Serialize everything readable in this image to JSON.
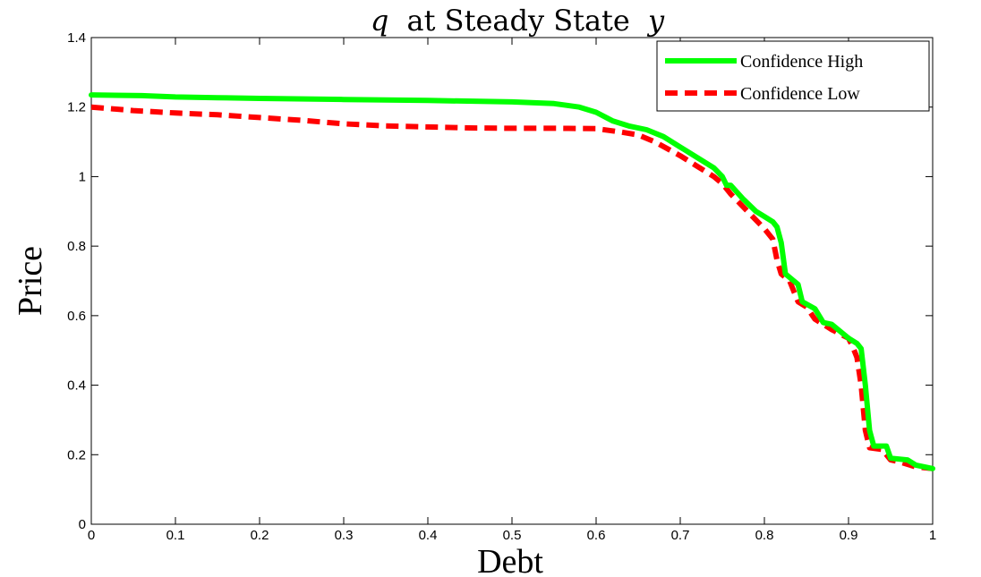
{
  "chart_data": {
    "type": "line",
    "title": {
      "q": "q",
      "middle": "at Steady State",
      "y": "y"
    },
    "xlabel": "Debt",
    "ylabel": "Price",
    "xlim": [
      0,
      1
    ],
    "ylim": [
      0,
      1.4
    ],
    "xticks": [
      "0",
      "0.1",
      "0.2",
      "0.3",
      "0.4",
      "0.5",
      "0.6",
      "0.7",
      "0.8",
      "0.9",
      "1"
    ],
    "yticks": [
      "0",
      "0.2",
      "0.4",
      "0.6",
      "0.8",
      "1",
      "1.2",
      "1.4"
    ],
    "grid": false,
    "legend_position": "top-right",
    "series": [
      {
        "name": "Confidence High",
        "color": "#00ff00",
        "style": "solid",
        "points": [
          [
            0,
            1.235
          ],
          [
            0.06,
            1.233
          ],
          [
            0.1,
            1.229
          ],
          [
            0.15,
            1.227
          ],
          [
            0.2,
            1.225
          ],
          [
            0.3,
            1.222
          ],
          [
            0.4,
            1.219
          ],
          [
            0.5,
            1.215
          ],
          [
            0.55,
            1.21
          ],
          [
            0.58,
            1.2
          ],
          [
            0.6,
            1.185
          ],
          [
            0.62,
            1.16
          ],
          [
            0.64,
            1.145
          ],
          [
            0.66,
            1.135
          ],
          [
            0.68,
            1.115
          ],
          [
            0.7,
            1.085
          ],
          [
            0.72,
            1.055
          ],
          [
            0.74,
            1.025
          ],
          [
            0.75,
            1.0
          ],
          [
            0.755,
            0.975
          ],
          [
            0.76,
            0.975
          ],
          [
            0.775,
            0.935
          ],
          [
            0.79,
            0.9
          ],
          [
            0.8,
            0.885
          ],
          [
            0.81,
            0.87
          ],
          [
            0.815,
            0.855
          ],
          [
            0.82,
            0.81
          ],
          [
            0.825,
            0.72
          ],
          [
            0.835,
            0.7
          ],
          [
            0.84,
            0.69
          ],
          [
            0.845,
            0.64
          ],
          [
            0.86,
            0.62
          ],
          [
            0.87,
            0.58
          ],
          [
            0.88,
            0.575
          ],
          [
            0.9,
            0.535
          ],
          [
            0.91,
            0.52
          ],
          [
            0.915,
            0.505
          ],
          [
            0.92,
            0.4
          ],
          [
            0.925,
            0.27
          ],
          [
            0.93,
            0.225
          ],
          [
            0.945,
            0.225
          ],
          [
            0.95,
            0.19
          ],
          [
            0.97,
            0.185
          ],
          [
            0.98,
            0.17
          ],
          [
            1.0,
            0.16
          ]
        ]
      },
      {
        "name": "Confidence Low",
        "color": "#ff0000",
        "style": "dashed",
        "points": [
          [
            0,
            1.2
          ],
          [
            0.05,
            1.19
          ],
          [
            0.1,
            1.183
          ],
          [
            0.15,
            1.178
          ],
          [
            0.2,
            1.17
          ],
          [
            0.25,
            1.162
          ],
          [
            0.3,
            1.152
          ],
          [
            0.35,
            1.146
          ],
          [
            0.4,
            1.143
          ],
          [
            0.45,
            1.14
          ],
          [
            0.5,
            1.139
          ],
          [
            0.55,
            1.139
          ],
          [
            0.6,
            1.138
          ],
          [
            0.63,
            1.128
          ],
          [
            0.65,
            1.12
          ],
          [
            0.67,
            1.1
          ],
          [
            0.7,
            1.06
          ],
          [
            0.72,
            1.03
          ],
          [
            0.74,
            1.0
          ],
          [
            0.75,
            0.98
          ],
          [
            0.76,
            0.95
          ],
          [
            0.78,
            0.9
          ],
          [
            0.8,
            0.85
          ],
          [
            0.81,
            0.82
          ],
          [
            0.815,
            0.76
          ],
          [
            0.82,
            0.72
          ],
          [
            0.83,
            0.7
          ],
          [
            0.84,
            0.64
          ],
          [
            0.85,
            0.625
          ],
          [
            0.86,
            0.59
          ],
          [
            0.88,
            0.56
          ],
          [
            0.9,
            0.535
          ],
          [
            0.905,
            0.51
          ],
          [
            0.91,
            0.48
          ],
          [
            0.915,
            0.4
          ],
          [
            0.92,
            0.27
          ],
          [
            0.925,
            0.22
          ],
          [
            0.94,
            0.215
          ],
          [
            0.95,
            0.185
          ],
          [
            0.96,
            0.18
          ],
          [
            0.98,
            0.165
          ],
          [
            1.0,
            0.16
          ]
        ]
      }
    ]
  }
}
